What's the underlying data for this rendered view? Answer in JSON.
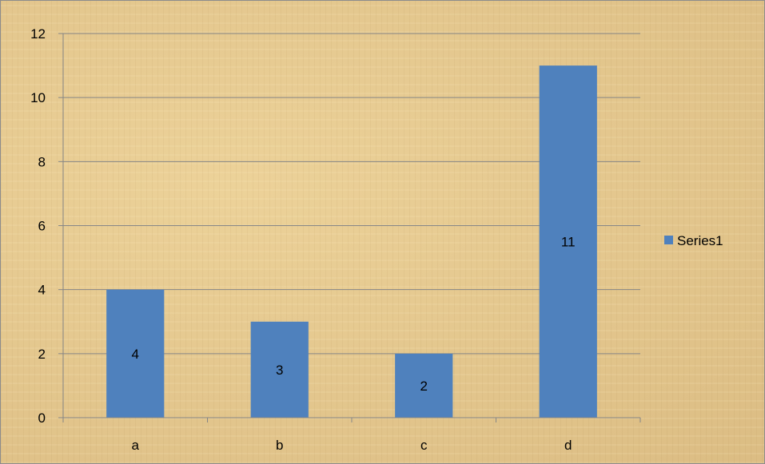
{
  "chart_data": {
    "type": "bar",
    "categories": [
      "a",
      "b",
      "c",
      "d"
    ],
    "series": [
      {
        "name": "Series1",
        "values": [
          4,
          3,
          2,
          11
        ]
      }
    ],
    "data_labels": [
      "4",
      "3",
      "2",
      "11"
    ],
    "y_ticks": [
      0,
      2,
      4,
      6,
      8,
      10,
      12
    ],
    "ylim": [
      0,
      12
    ],
    "grid": true,
    "legend": "right",
    "colors": {
      "bar": "#4f81bd",
      "gridline": "#868686",
      "background": "#e2c691"
    }
  }
}
